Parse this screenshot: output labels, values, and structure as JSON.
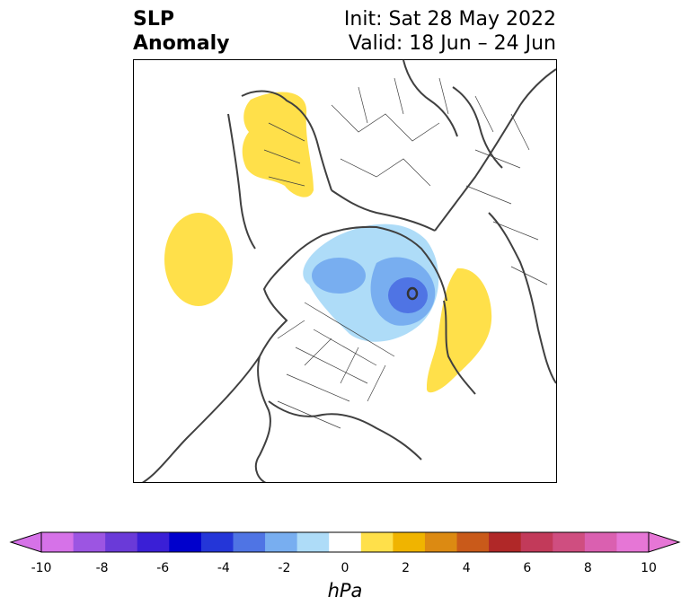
{
  "title": {
    "left_line1": "SLP",
    "left_line2": "Anomaly",
    "right_line1": "Init: Sat 28 May 2022",
    "right_line2": "Valid: 18 Jun – 24 Jun"
  },
  "colorbar": {
    "label": "hPa",
    "ticks": [
      "-10",
      "-8",
      "-6",
      "-4",
      "-2",
      "0",
      "2",
      "4",
      "6",
      "8",
      "10"
    ],
    "colors": [
      "#d672e8",
      "#9c55e2",
      "#6a3ad8",
      "#3a1fd6",
      "#0000cc",
      "#2436d8",
      "#4f74e4",
      "#78aef0",
      "#aedcf8",
      "#ffffff",
      "#ffe04a",
      "#f0b400",
      "#dc8a12",
      "#c95a1a",
      "#b02828",
      "#c23a5a",
      "#cf4e80",
      "#da60b0",
      "#e676d6"
    ],
    "extend_min_color": "#d672e8",
    "extend_max_color": "#e676d6"
  },
  "map": {
    "projection": "north-polar-stereographic",
    "features": [
      "coastlines",
      "country-borders",
      "state-borders"
    ],
    "anomalies": [
      {
        "name": "europe-high",
        "sign": "positive",
        "level": "1 to 2 hPa"
      },
      {
        "name": "north-pacific-high",
        "sign": "positive",
        "level": "1 to 2 hPa"
      },
      {
        "name": "north-atlantic-high",
        "sign": "positive",
        "level": "1 to 2 hPa"
      },
      {
        "name": "arctic-low",
        "sign": "negative",
        "level": "-1 to -6 hPa"
      }
    ]
  }
}
